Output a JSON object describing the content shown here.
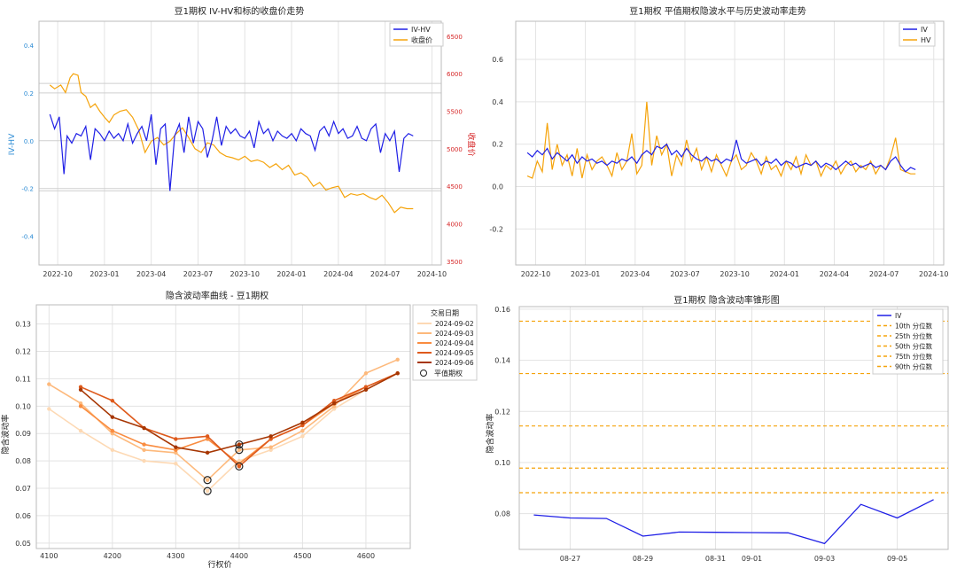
{
  "chart_data": [
    {
      "id": "iv_hv_close",
      "type": "line",
      "title": "豆1期权 IV-HV和标的收盘价走势",
      "xlabel": "",
      "ylabel": "IV-HV",
      "ylabel_right": "收盘价",
      "x_ticks": [
        "2022-10",
        "2023-01",
        "2023-04",
        "2023-07",
        "2023-10",
        "2024-01",
        "2024-04",
        "2024-07",
        "2024-10"
      ],
      "x_tick_pos": [
        0,
        3,
        6,
        9,
        12,
        15,
        18,
        21,
        24
      ],
      "xlim": [
        -1.2,
        24.6
      ],
      "ylim": [
        -0.52,
        0.5
      ],
      "ylim_right": [
        3450,
        6700
      ],
      "y_ticks": [
        "0.4",
        "0.2",
        "0.0",
        "-0.2",
        "-0.4"
      ],
      "y_tick_vals": [
        0.4,
        0.2,
        0.0,
        -0.2,
        -0.4
      ],
      "y_ticks_right": [
        "6500",
        "6000",
        "5500",
        "5000",
        "4500",
        "4000",
        "3500"
      ],
      "y_tick_vals_right": [
        6500,
        6000,
        5500,
        5000,
        4500,
        4000,
        3500
      ],
      "hlines": [
        0.24,
        0.2,
        0.0,
        -0.2,
        -0.21
      ],
      "legend_position": "upper right",
      "series": [
        {
          "name": "IV-HV",
          "color": "#1f1fe6",
          "axis": "left",
          "x": [
            -0.5,
            -0.2,
            0.1,
            0.4,
            0.6,
            0.9,
            1.2,
            1.5,
            1.8,
            2.1,
            2.4,
            2.7,
            3.0,
            3.3,
            3.6,
            3.9,
            4.2,
            4.5,
            4.8,
            5.1,
            5.4,
            5.7,
            6.0,
            6.3,
            6.6,
            6.9,
            7.2,
            7.5,
            7.8,
            8.1,
            8.4,
            8.7,
            9.0,
            9.3,
            9.6,
            9.9,
            10.2,
            10.5,
            10.8,
            11.1,
            11.4,
            11.7,
            12.0,
            12.3,
            12.6,
            12.9,
            13.2,
            13.5,
            13.8,
            14.1,
            14.4,
            14.7,
            15.0,
            15.3,
            15.6,
            15.9,
            16.2,
            16.5,
            16.8,
            17.1,
            17.4,
            17.7,
            18.0,
            18.3,
            18.6,
            18.9,
            19.2,
            19.5,
            19.8,
            20.1,
            20.4,
            20.7,
            21.0,
            21.3,
            21.6,
            21.9,
            22.2,
            22.5,
            22.8
          ],
          "y": [
            0.11,
            0.05,
            0.1,
            -0.14,
            0.02,
            -0.01,
            0.03,
            0.02,
            0.06,
            -0.08,
            0.05,
            0.03,
            0.0,
            0.04,
            0.01,
            0.03,
            0.0,
            0.07,
            -0.01,
            0.03,
            0.06,
            0.0,
            0.11,
            -0.1,
            0.05,
            0.07,
            -0.21,
            0.02,
            0.07,
            -0.05,
            0.1,
            -0.01,
            0.08,
            0.05,
            -0.07,
            0.0,
            0.1,
            -0.02,
            0.06,
            0.03,
            0.05,
            0.02,
            0.01,
            0.04,
            -0.03,
            0.08,
            0.03,
            0.05,
            0.0,
            0.04,
            0.02,
            0.01,
            0.03,
            0.0,
            0.05,
            0.03,
            0.02,
            -0.04,
            0.04,
            0.06,
            0.02,
            0.08,
            0.03,
            0.05,
            0.01,
            0.02,
            0.06,
            0.01,
            0.0,
            0.05,
            0.07,
            -0.05,
            0.03,
            0.0,
            0.04,
            -0.13,
            0.01,
            0.03,
            0.02
          ]
        },
        {
          "name": "收盘价",
          "color": "#f5a30a",
          "axis": "right",
          "x": [
            -0.5,
            -0.2,
            0.2,
            0.5,
            0.8,
            1.0,
            1.3,
            1.5,
            1.8,
            2.1,
            2.4,
            2.7,
            3.0,
            3.3,
            3.6,
            4.0,
            4.4,
            4.8,
            5.2,
            5.6,
            6.0,
            6.4,
            6.8,
            7.2,
            7.6,
            8.0,
            8.4,
            8.8,
            9.2,
            9.6,
            10.0,
            10.4,
            10.8,
            11.2,
            11.6,
            12.0,
            12.4,
            12.8,
            13.2,
            13.6,
            14.0,
            14.4,
            14.8,
            15.2,
            15.6,
            16.0,
            16.4,
            16.8,
            17.2,
            17.6,
            18.0,
            18.4,
            18.8,
            19.2,
            19.6,
            20.0,
            20.4,
            20.8,
            21.2,
            21.6,
            22.0,
            22.4,
            22.8
          ],
          "y": [
            5850,
            5800,
            5850,
            5750,
            5950,
            6000,
            5980,
            5750,
            5700,
            5550,
            5600,
            5500,
            5420,
            5350,
            5450,
            5500,
            5520,
            5420,
            5250,
            4950,
            5100,
            5150,
            5050,
            5100,
            5200,
            5280,
            5150,
            5000,
            4950,
            5080,
            5050,
            4950,
            4900,
            4880,
            4850,
            4900,
            4830,
            4850,
            4820,
            4750,
            4800,
            4720,
            4780,
            4650,
            4680,
            4620,
            4500,
            4550,
            4450,
            4480,
            4500,
            4350,
            4400,
            4380,
            4400,
            4350,
            4320,
            4380,
            4280,
            4150,
            4220,
            4200,
            4200
          ]
        }
      ]
    },
    {
      "id": "atm_iv_hv",
      "type": "line",
      "title": "豆1期权 平值期权隐波水平与历史波动率走势",
      "xlabel": "",
      "ylabel": "",
      "x_ticks": [
        "2022-10",
        "2023-01",
        "2023-04",
        "2023-07",
        "2023-10",
        "2024-01",
        "2024-04",
        "2024-07",
        "2024-10"
      ],
      "x_tick_pos": [
        0,
        3,
        6,
        9,
        12,
        15,
        18,
        21,
        24
      ],
      "xlim": [
        -1.2,
        24.6
      ],
      "ylim": [
        -0.37,
        0.78
      ],
      "y_ticks": [
        "0.6",
        "0.4",
        "0.2",
        "0.0",
        "-0.2"
      ],
      "y_tick_vals": [
        0.6,
        0.4,
        0.2,
        0.0,
        -0.2
      ],
      "legend_position": "upper right",
      "series": [
        {
          "name": "IV",
          "color": "#1f1fe6",
          "x": [
            -0.5,
            -0.2,
            0.1,
            0.4,
            0.7,
            1.0,
            1.3,
            1.6,
            1.9,
            2.2,
            2.5,
            2.8,
            3.1,
            3.4,
            3.7,
            4.0,
            4.3,
            4.6,
            4.9,
            5.2,
            5.5,
            5.8,
            6.1,
            6.4,
            6.7,
            7.0,
            7.3,
            7.6,
            7.9,
            8.2,
            8.5,
            8.8,
            9.1,
            9.4,
            9.7,
            10.0,
            10.3,
            10.6,
            10.9,
            11.2,
            11.5,
            11.8,
            12.1,
            12.4,
            12.7,
            13.0,
            13.3,
            13.6,
            13.9,
            14.2,
            14.5,
            14.8,
            15.1,
            15.4,
            15.7,
            16.0,
            16.3,
            16.6,
            16.9,
            17.2,
            17.5,
            17.8,
            18.1,
            18.4,
            18.7,
            19.0,
            19.3,
            19.6,
            19.9,
            20.2,
            20.5,
            20.8,
            21.1,
            21.4,
            21.7,
            22.0,
            22.3,
            22.6,
            22.9
          ],
          "y": [
            0.16,
            0.14,
            0.17,
            0.15,
            0.18,
            0.13,
            0.16,
            0.14,
            0.12,
            0.15,
            0.11,
            0.14,
            0.12,
            0.13,
            0.11,
            0.12,
            0.1,
            0.12,
            0.11,
            0.13,
            0.12,
            0.14,
            0.11,
            0.15,
            0.17,
            0.15,
            0.19,
            0.18,
            0.2,
            0.15,
            0.17,
            0.14,
            0.18,
            0.15,
            0.13,
            0.12,
            0.14,
            0.12,
            0.13,
            0.11,
            0.13,
            0.12,
            0.22,
            0.13,
            0.11,
            0.12,
            0.13,
            0.1,
            0.12,
            0.11,
            0.13,
            0.1,
            0.12,
            0.11,
            0.09,
            0.1,
            0.11,
            0.1,
            0.12,
            0.09,
            0.11,
            0.1,
            0.08,
            0.1,
            0.12,
            0.1,
            0.11,
            0.09,
            0.1,
            0.11,
            0.09,
            0.1,
            0.08,
            0.12,
            0.14,
            0.1,
            0.07,
            0.09,
            0.08
          ]
        },
        {
          "name": "HV",
          "color": "#f5a30a",
          "x": [
            -0.5,
            -0.2,
            0.1,
            0.4,
            0.7,
            1.0,
            1.3,
            1.6,
            1.9,
            2.2,
            2.5,
            2.8,
            3.1,
            3.4,
            3.7,
            4.0,
            4.3,
            4.6,
            4.9,
            5.2,
            5.5,
            5.8,
            6.1,
            6.4,
            6.7,
            7.0,
            7.3,
            7.6,
            7.9,
            8.2,
            8.5,
            8.8,
            9.1,
            9.4,
            9.7,
            10.0,
            10.3,
            10.6,
            10.9,
            11.2,
            11.5,
            11.8,
            12.1,
            12.4,
            12.7,
            13.0,
            13.3,
            13.6,
            13.9,
            14.2,
            14.5,
            14.8,
            15.1,
            15.4,
            15.7,
            16.0,
            16.3,
            16.6,
            16.9,
            17.2,
            17.5,
            17.8,
            18.1,
            18.4,
            18.7,
            19.0,
            19.3,
            19.6,
            19.9,
            20.2,
            20.5,
            20.8,
            21.1,
            21.4,
            21.7,
            22.0,
            22.3,
            22.6,
            22.9
          ],
          "y": [
            0.05,
            0.04,
            0.12,
            0.07,
            0.3,
            0.08,
            0.2,
            0.1,
            0.15,
            0.05,
            0.18,
            0.04,
            0.15,
            0.08,
            0.12,
            0.14,
            0.1,
            0.05,
            0.16,
            0.08,
            0.12,
            0.25,
            0.06,
            0.1,
            0.4,
            0.1,
            0.24,
            0.15,
            0.2,
            0.05,
            0.15,
            0.1,
            0.22,
            0.12,
            0.18,
            0.08,
            0.14,
            0.07,
            0.15,
            0.1,
            0.05,
            0.12,
            0.15,
            0.08,
            0.1,
            0.16,
            0.12,
            0.06,
            0.14,
            0.08,
            0.1,
            0.05,
            0.12,
            0.08,
            0.14,
            0.06,
            0.15,
            0.1,
            0.12,
            0.05,
            0.1,
            0.08,
            0.12,
            0.06,
            0.1,
            0.12,
            0.07,
            0.1,
            0.08,
            0.12,
            0.06,
            0.1,
            0.08,
            0.14,
            0.23,
            0.08,
            0.07,
            0.06,
            0.06
          ]
        }
      ]
    },
    {
      "id": "smile",
      "type": "line",
      "title": "隐含波动率曲线 - 豆1期权",
      "xlabel": "行权价",
      "ylabel": "隐含波动率",
      "xlim": [
        4080,
        4670
      ],
      "ylim": [
        0.048,
        0.137
      ],
      "x_ticks": [
        "4100",
        "4200",
        "4300",
        "4400",
        "4500",
        "4600"
      ],
      "x_tick_vals": [
        4100,
        4200,
        4300,
        4400,
        4500,
        4600
      ],
      "y_ticks": [
        "0.13",
        "0.12",
        "0.11",
        "0.10",
        "0.09",
        "0.08",
        "0.07",
        "0.06",
        "0.05"
      ],
      "y_tick_vals": [
        0.13,
        0.12,
        0.11,
        0.1,
        0.09,
        0.08,
        0.07,
        0.06,
        0.05
      ],
      "legend_title": "交易日期",
      "legend_position": "upper right outside",
      "atm_label": "平值期权",
      "series": [
        {
          "name": "2024-09-02",
          "color": "#fdd9b4",
          "x": [
            4100,
            4150,
            4200,
            4250,
            4300,
            4350,
            4400,
            4450,
            4500,
            4550,
            4600,
            4650
          ],
          "y": [
            0.099,
            0.091,
            0.084,
            0.08,
            0.079,
            0.069,
            0.08,
            0.084,
            0.089,
            0.099,
            0.106,
            0.112
          ]
        },
        {
          "name": "2024-09-03",
          "color": "#fdb97c",
          "x": [
            4100,
            4150,
            4200,
            4250,
            4300,
            4350,
            4400,
            4450,
            4500,
            4550,
            4600,
            4650
          ],
          "y": [
            0.108,
            0.101,
            0.09,
            0.084,
            0.083,
            0.073,
            0.084,
            0.085,
            0.091,
            0.1,
            0.112,
            0.117
          ]
        },
        {
          "name": "2024-09-04",
          "color": "#f98c40",
          "x": [
            4150,
            4200,
            4250,
            4300,
            4350,
            4400,
            4450,
            4500,
            4550,
            4600,
            4650
          ],
          "y": [
            0.1,
            0.091,
            0.086,
            0.084,
            0.088,
            0.079,
            0.088,
            0.093,
            0.101,
            0.107,
            0.112
          ]
        },
        {
          "name": "2024-09-05",
          "color": "#de5a1c",
          "x": [
            4150,
            4200,
            4250,
            4300,
            4350,
            4400,
            4450,
            4500,
            4550,
            4600,
            4650
          ],
          "y": [
            0.107,
            0.102,
            0.092,
            0.088,
            0.089,
            0.078,
            0.088,
            0.093,
            0.102,
            0.107,
            0.112
          ]
        },
        {
          "name": "2024-09-06",
          "color": "#a63603",
          "x": [
            4150,
            4200,
            4250,
            4300,
            4350,
            4400,
            4450,
            4500,
            4550,
            4600,
            4650
          ],
          "y": [
            0.106,
            0.096,
            0.092,
            0.085,
            0.083,
            0.086,
            0.089,
            0.094,
            0.101,
            0.106,
            0.112
          ]
        }
      ],
      "atm_points": [
        {
          "x": 4350,
          "y": 0.073
        },
        {
          "x": 4350,
          "y": 0.069
        },
        {
          "x": 4400,
          "y": 0.086
        },
        {
          "x": 4400,
          "y": 0.084
        },
        {
          "x": 4400,
          "y": 0.078
        }
      ]
    },
    {
      "id": "cone",
      "type": "line",
      "title": "豆1期权 隐含波动率锥形图",
      "xlabel": "",
      "ylabel": "隐含波动率",
      "xlim": [
        -0.4,
        11.4
      ],
      "ylim": [
        0.066,
        0.161
      ],
      "x_ticks": [
        "08-27",
        "08-29",
        "08-31",
        "09-01",
        "09-03",
        "09-05"
      ],
      "x_tick_pos": [
        1,
        3,
        5,
        6,
        8,
        10
      ],
      "y_ticks": [
        "0.16",
        "0.14",
        "0.12",
        "0.10",
        "0.08"
      ],
      "y_tick_vals": [
        0.16,
        0.14,
        0.12,
        0.1,
        0.08
      ],
      "legend_position": "upper right",
      "series": [
        {
          "name": "IV",
          "color": "#1f1fe6",
          "x": [
            0,
            1,
            2,
            3,
            4,
            5,
            6,
            7,
            8,
            9,
            10,
            11
          ],
          "y": [
            0.0795,
            0.0783,
            0.0781,
            0.0712,
            0.0728,
            0.0727,
            0.0726,
            0.0725,
            0.0683,
            0.0836,
            0.0783,
            0.0855
          ]
        }
      ],
      "percentiles": [
        {
          "name": "10th 分位数",
          "value": 0.0882
        },
        {
          "name": "25th 分位数",
          "value": 0.0978
        },
        {
          "name": "50th 分位数",
          "value": 0.1143
        },
        {
          "name": "75th 分位数",
          "value": 0.1348
        },
        {
          "name": "90th 分位数",
          "value": 0.1553
        }
      ],
      "percentile_color": "#f5a30a"
    }
  ]
}
